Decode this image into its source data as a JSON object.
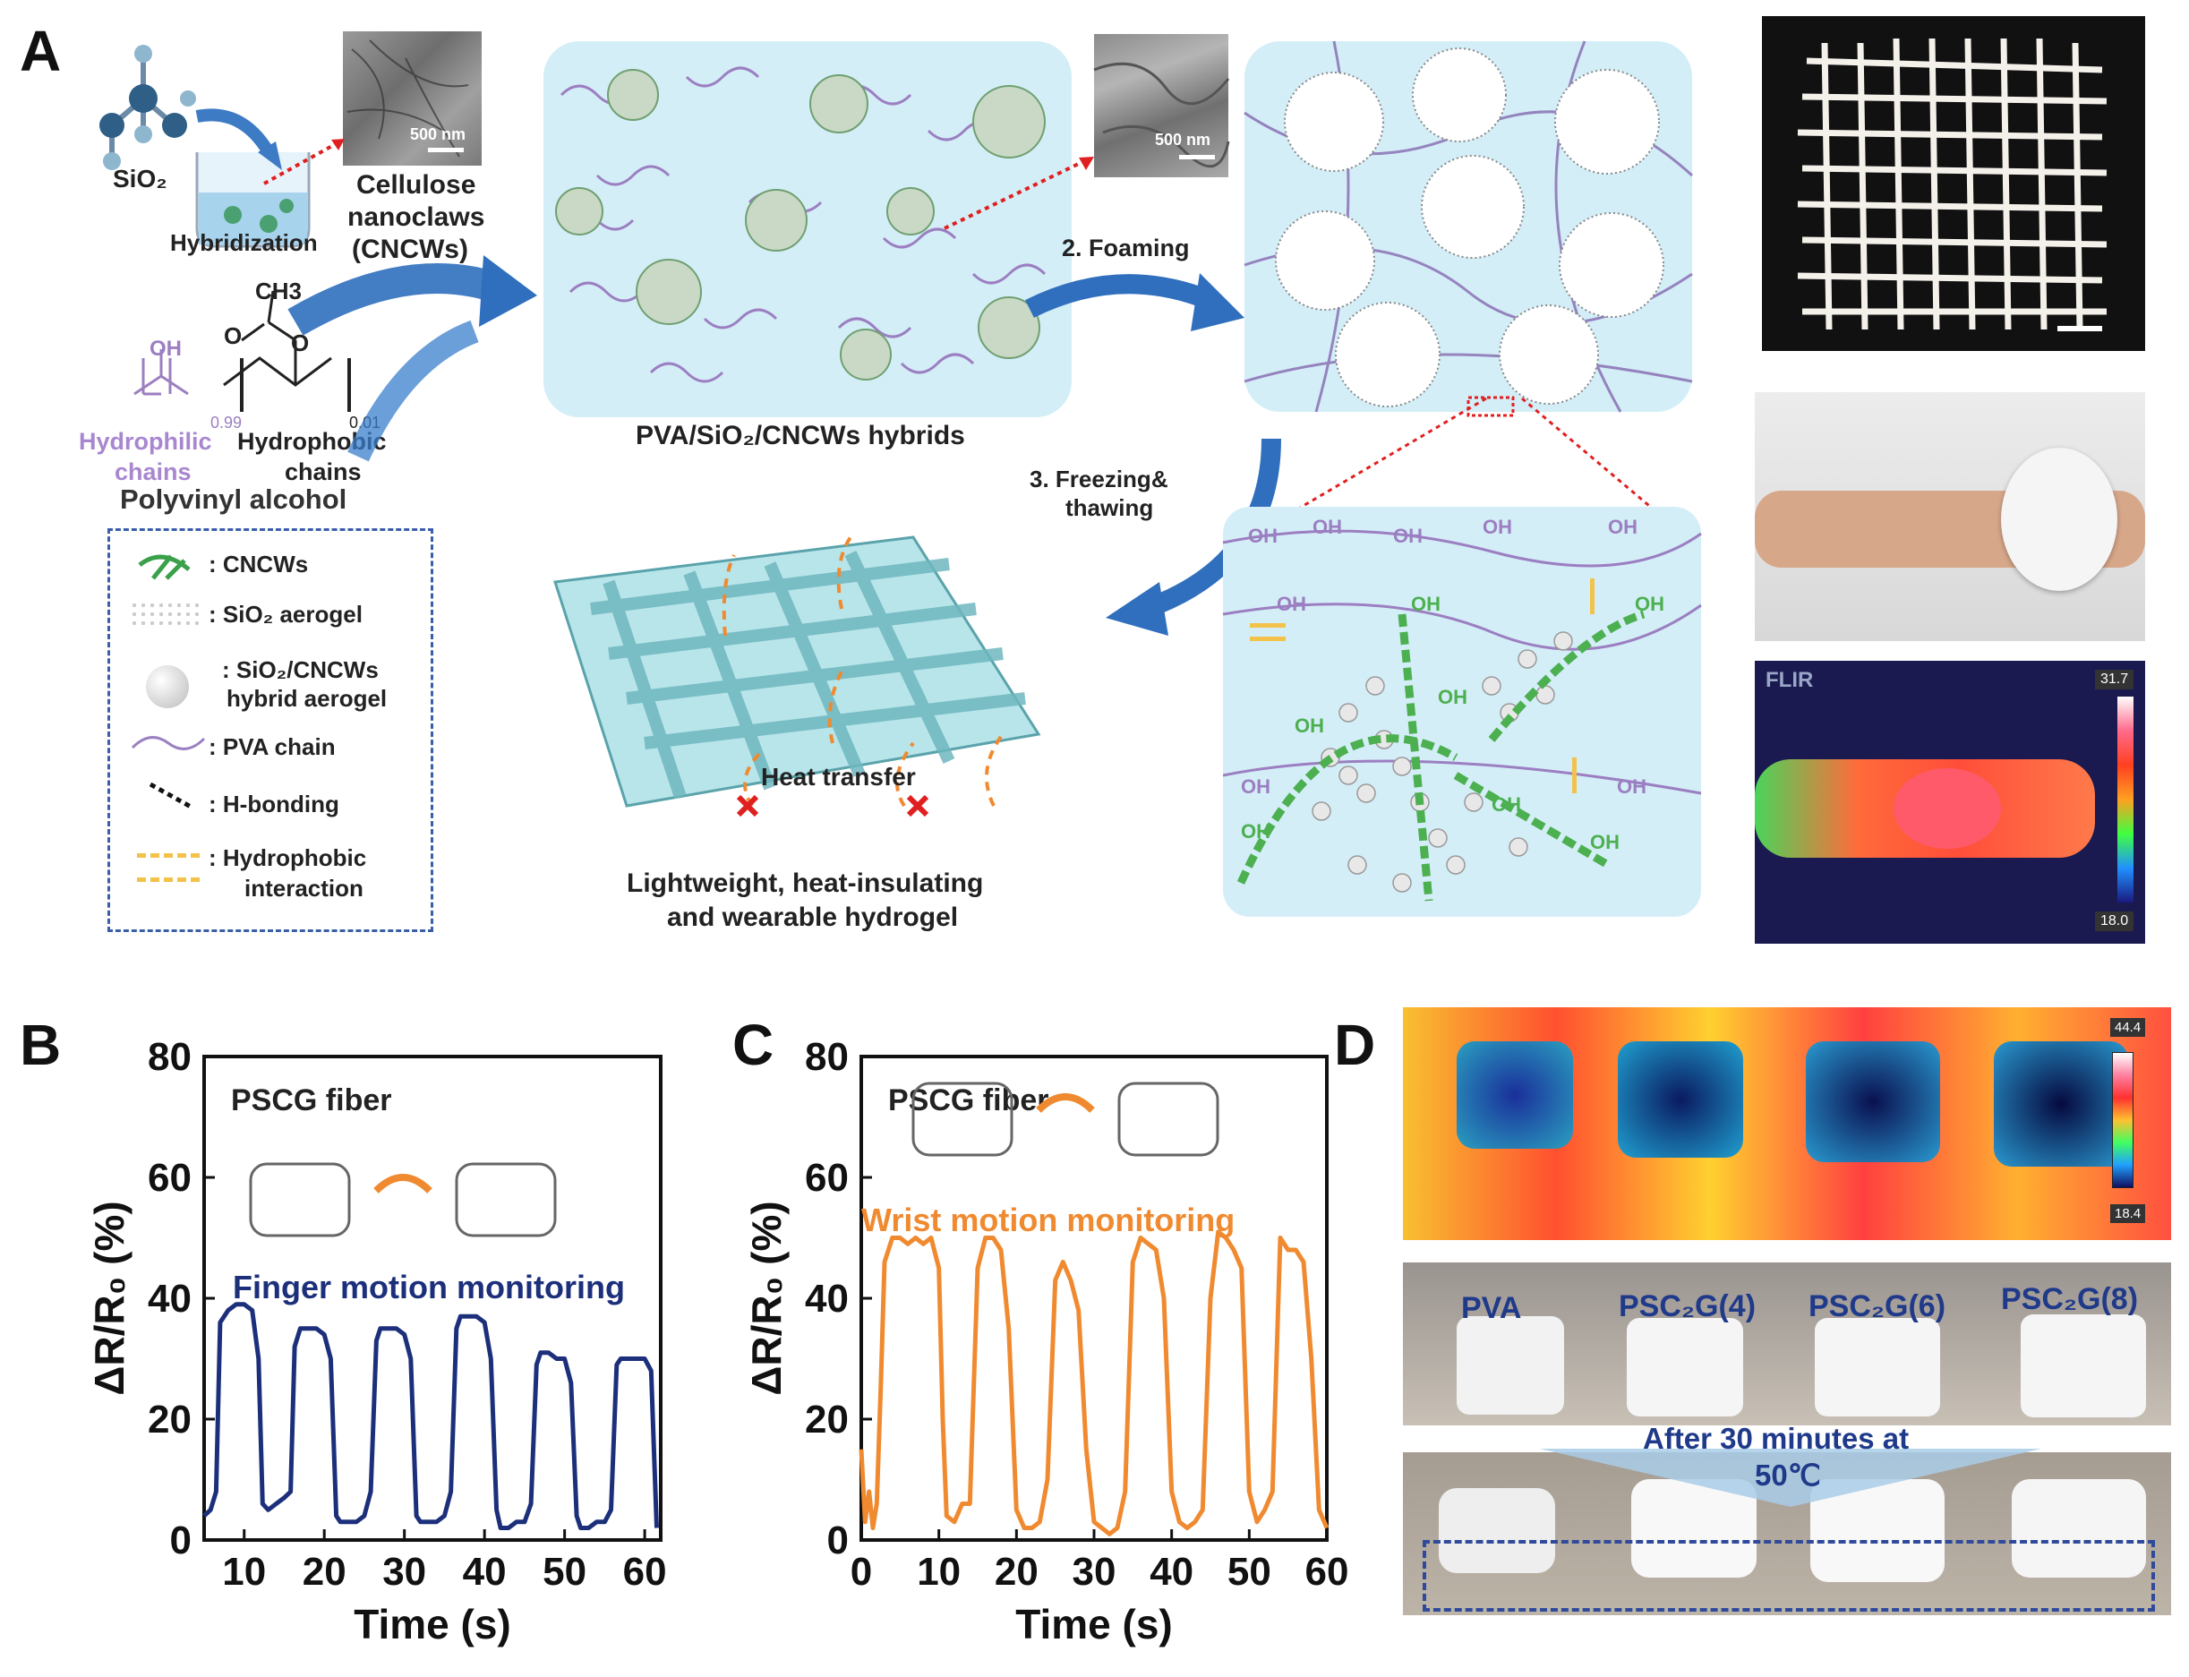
{
  "panels": {
    "a": "A",
    "b": "B",
    "c": "C",
    "d": "D"
  },
  "panelA": {
    "sio2": "SiO₂",
    "hybridization": "Hybridization",
    "cellulose_line1": "Cellulose",
    "cellulose_line2": "nanoclaws",
    "cellulose_line3": "(CNCWs)",
    "scale_500nm": "500 nm",
    "scale_500nm_b": "500 nm",
    "ch3": "CH3",
    "oh": "OH",
    "sub_099": "0.99",
    "sub_001": "0.01",
    "hydrophilic_line1": "Hydrophilic",
    "hydrophilic_line2": "chains",
    "hydrophobic_line1": "Hydrophobic",
    "hydrophobic_line2": "chains",
    "pva_name": "Polyvinyl alcohol",
    "hybrids_label": "PVA/SiO₂/CNCWs hybrids",
    "foaming": "2. Foaming",
    "freezing_line1": "3. Freezing&",
    "freezing_line2": "thawing",
    "heat_transfer": "Heat transfer",
    "hydrogel_line1": "Lightweight, heat-insulating",
    "hydrogel_line2": "and wearable hydrogel",
    "legend": [
      ": CNCWs",
      ": SiO₂ aerogel",
      ": SiO₂/CNCWs",
      "hybrid aerogel",
      ": PVA chain",
      ": H-bonding",
      ": Hydrophobic",
      "interaction"
    ],
    "flir": "FLIR",
    "flir_max": "31.7",
    "flir_min": "18.0"
  },
  "panelD": {
    "scale_max": "44.4",
    "scale_min": "18.4",
    "samples": [
      "PVA",
      "PSC₂G(4)",
      "PSC₂G(6)",
      "PSC₂G(8)"
    ],
    "after_line1": "After 30 minutes at",
    "after_line2": "50℃"
  },
  "chart_data": [
    {
      "type": "line",
      "panel": "B",
      "annotation": "PSCG fiber",
      "series_label": "Finger motion monitoring",
      "xlabel": "Time (s)",
      "ylabel": "ΔR/R₀ (%)",
      "xlim": [
        5,
        62
      ],
      "ylim": [
        0,
        80
      ],
      "xticks": [
        10,
        20,
        30,
        40,
        50,
        60
      ],
      "yticks": [
        0,
        20,
        40,
        60,
        80
      ],
      "color": "#1c2f7a",
      "series": [
        {
          "x": [
            5,
            5.8,
            6.5,
            7,
            8,
            9,
            10,
            11,
            11.8,
            12.3,
            13,
            14,
            15,
            15.8,
            16.3,
            17,
            18,
            19,
            20,
            20.8,
            21.5,
            22,
            23,
            24,
            25,
            25.8,
            26.5,
            27,
            28,
            29,
            30,
            30.8,
            31.5,
            32,
            33,
            34,
            35,
            35.8,
            36.5,
            37,
            38,
            39,
            40,
            40.8,
            41.5,
            42,
            43,
            44,
            45,
            45.8,
            46.5,
            47,
            48,
            49,
            50,
            50.8,
            51.5,
            52,
            53,
            54,
            55,
            55.8,
            56.5,
            57,
            58,
            59,
            60,
            60.8,
            61.5
          ],
          "y": [
            4,
            5,
            8,
            36,
            38,
            39,
            39,
            38,
            30,
            6,
            5,
            6,
            7,
            8,
            32,
            35,
            35,
            35,
            34,
            30,
            4,
            3,
            3,
            3,
            4,
            8,
            33,
            35,
            35,
            35,
            34,
            30,
            4,
            3,
            3,
            3,
            4,
            8,
            35,
            37,
            37,
            37,
            36,
            30,
            5,
            2,
            2,
            3,
            3,
            6,
            29,
            31,
            31,
            30,
            30,
            26,
            4,
            2,
            2,
            3,
            3,
            5,
            29,
            30,
            30,
            30,
            30,
            28,
            2
          ]
        }
      ]
    },
    {
      "type": "line",
      "panel": "C",
      "annotation": "PSCG fiber",
      "series_label": "Wrist motion monitoring",
      "xlabel": "Time (s)",
      "ylabel": "ΔR/R₀ (%)",
      "xlim": [
        0,
        60
      ],
      "ylim": [
        0,
        80
      ],
      "xticks": [
        0,
        10,
        20,
        30,
        40,
        50,
        60
      ],
      "yticks": [
        0,
        20,
        40,
        60,
        80
      ],
      "color": "#f08a30",
      "series": [
        {
          "x": [
            0,
            0.5,
            1,
            1.5,
            2,
            2.5,
            3,
            4,
            5,
            6,
            7,
            8,
            9,
            10,
            10.5,
            11,
            12,
            13,
            14,
            15,
            16,
            17,
            18,
            19,
            20,
            21,
            22,
            23,
            24,
            25,
            26,
            27,
            28,
            29,
            30,
            31,
            32,
            33,
            34,
            35,
            36,
            37,
            38,
            39,
            40,
            41,
            42,
            43,
            44,
            45,
            46,
            47,
            48,
            49,
            50,
            51,
            52,
            53,
            54,
            55,
            56,
            57,
            58,
            59,
            60
          ],
          "y": [
            15,
            3,
            8,
            2,
            6,
            25,
            46,
            50,
            50,
            49,
            50,
            49,
            50,
            45,
            20,
            4,
            3,
            6,
            6,
            45,
            50,
            50,
            48,
            35,
            5,
            2,
            2,
            3,
            10,
            43,
            46,
            43,
            38,
            15,
            3,
            2,
            1,
            2,
            8,
            46,
            50,
            49,
            48,
            40,
            8,
            3,
            2,
            3,
            5,
            40,
            51,
            50,
            48,
            45,
            8,
            3,
            5,
            8,
            50,
            48,
            48,
            46,
            30,
            5,
            2
          ]
        }
      ]
    }
  ]
}
